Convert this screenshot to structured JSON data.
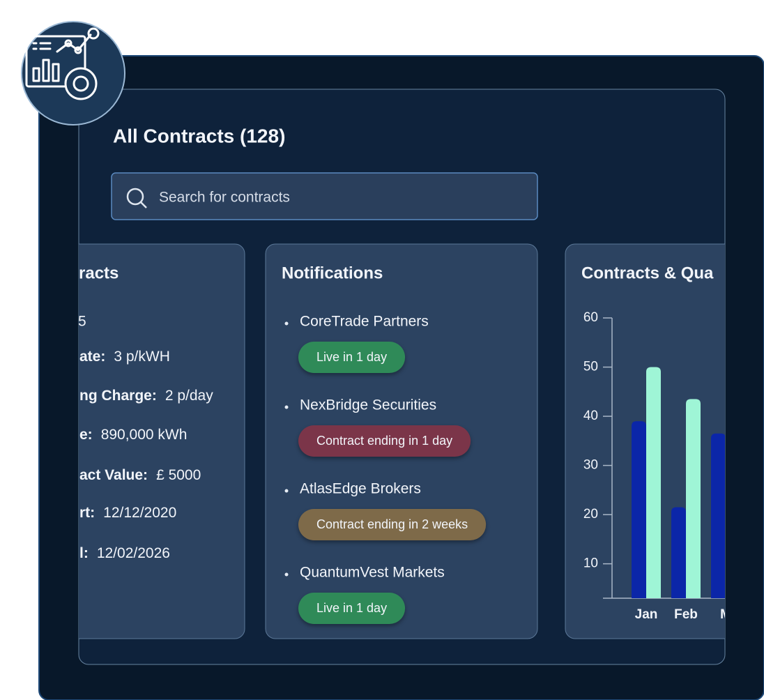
{
  "header": {
    "title": "All Contracts (128)",
    "search_placeholder": "Search for contracts"
  },
  "contract_card": {
    "title": "racts",
    "count": "5",
    "fields": [
      {
        "label": "ate:",
        "value": "3 p/kWH"
      },
      {
        "label": "ng Charge:",
        "value": "2 p/day"
      },
      {
        "label": "e:",
        "value": "890,000 kWh"
      },
      {
        "label": "act Value:",
        "value": "£ 5000"
      },
      {
        "label": "rt:",
        "value": "12/12/2020"
      },
      {
        "label": "l:",
        "value": "12/02/2026"
      }
    ]
  },
  "notifications": {
    "title": "Notifications",
    "items": [
      {
        "name": "CoreTrade Partners",
        "status": "Live in 1 day",
        "color": "#2f8a58"
      },
      {
        "name": "NexBridge Securities",
        "status": "Contract ending in 1 day",
        "color": "#7b3549"
      },
      {
        "name": "AtlasEdge Brokers",
        "status": "Contract ending in 2 weeks",
        "color": "#7e6a49"
      },
      {
        "name": "QuantumVest Markets",
        "status": "Live in 1 day",
        "color": "#2f8a58"
      }
    ]
  },
  "chart_data": {
    "type": "bar",
    "title": "Contracts & Qua",
    "categories": [
      "Jan",
      "Feb",
      "M"
    ],
    "series": [
      {
        "color": "#0b26a8",
        "values": [
          39,
          21.5,
          36.5
        ]
      },
      {
        "color": "#9ff5d6",
        "values": [
          50,
          43.5,
          null
        ]
      }
    ],
    "ylim": [
      3,
      60
    ],
    "yticks": [
      10,
      20,
      30,
      40,
      50,
      60
    ]
  }
}
